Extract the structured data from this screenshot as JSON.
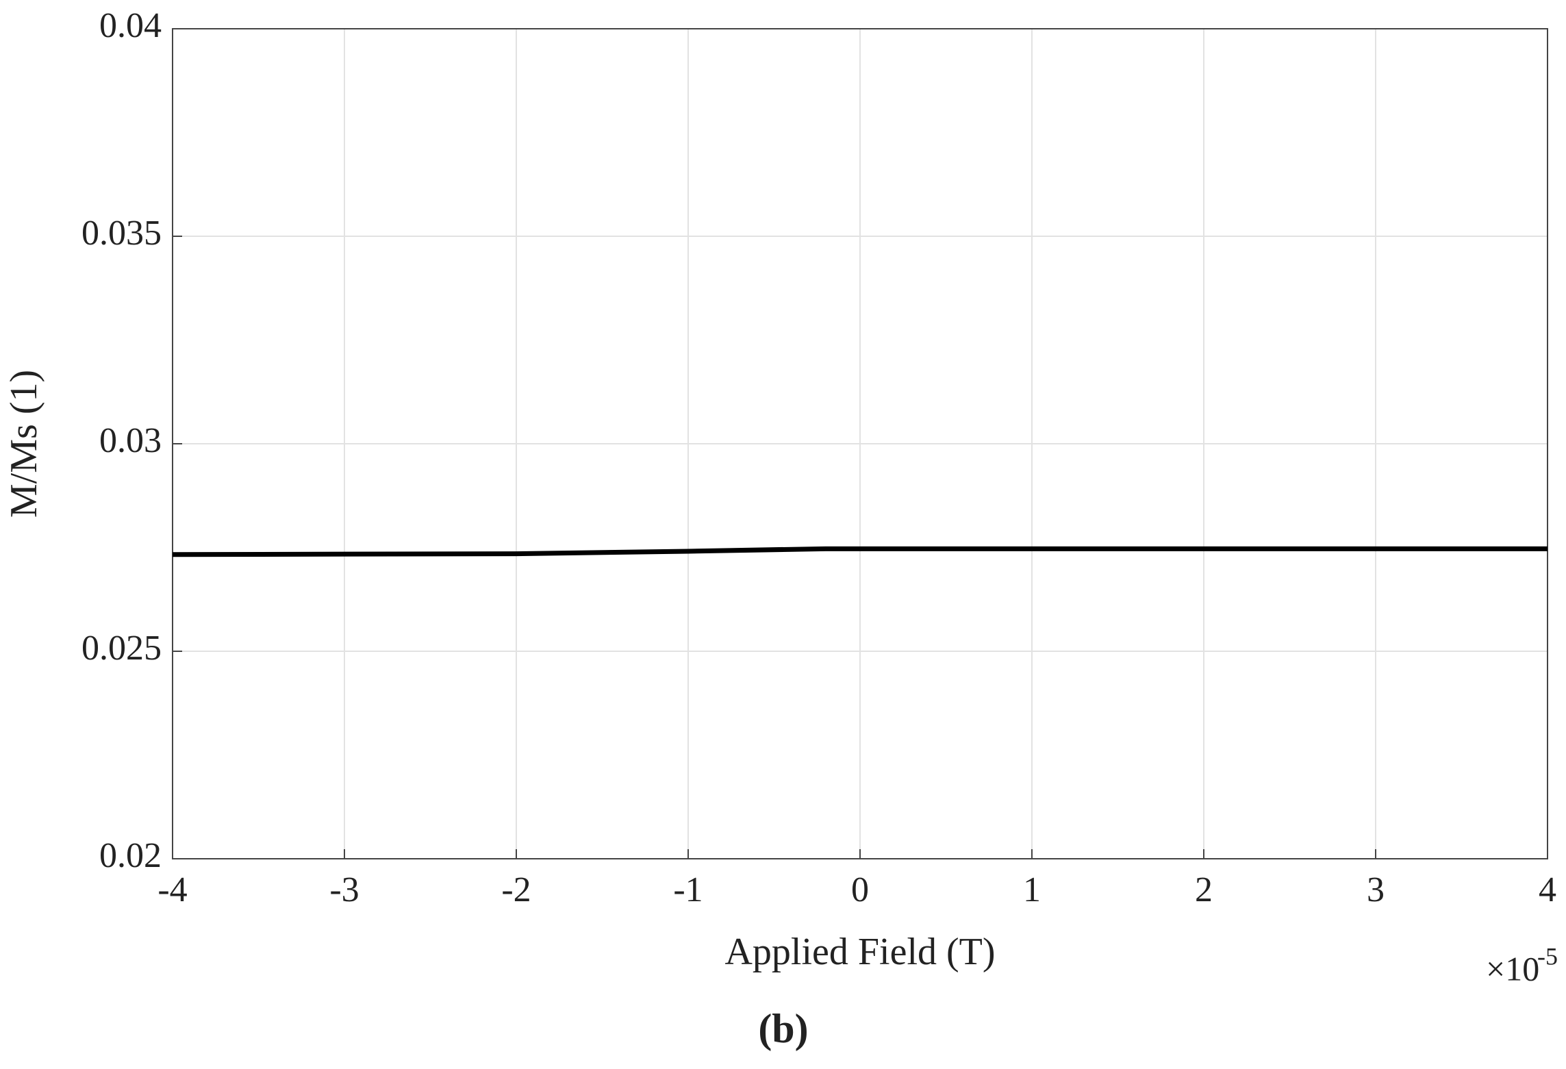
{
  "chart_data": {
    "type": "line",
    "x_label": "Applied Field (T)",
    "y_label": "M/Ms (1)",
    "x_multiplier": {
      "base": "×10",
      "exponent": "-5"
    },
    "caption": "(b)",
    "x": [
      -4,
      -2,
      -1,
      -0.2,
      4
    ],
    "series": [
      {
        "color": "#000000",
        "values": [
          0.02733,
          0.02735,
          0.02741,
          0.02747,
          0.02747
        ]
      }
    ],
    "xlim": [
      -4,
      4
    ],
    "xticks": [
      -4,
      -3,
      -2,
      -1,
      0,
      1,
      2,
      3,
      4
    ],
    "ylim": [
      0.02,
      0.04
    ],
    "yticks": [
      0.02,
      0.025,
      0.03,
      0.035,
      0.04
    ],
    "grid": true
  }
}
